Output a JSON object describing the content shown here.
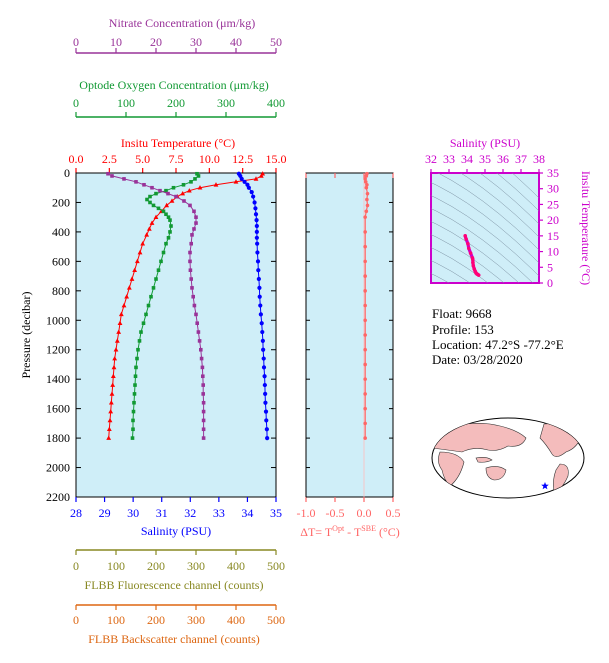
{
  "colors": {
    "panel_fill": "#cfeef8",
    "nitrate": "#993399",
    "oxygen": "#119933",
    "temperature": "#ff0000",
    "salinity": "#0000ff",
    "delta_t": "#ff6666",
    "ts_axis": "#cc00cc",
    "fluorescence": "#888822",
    "backscatter": "#dd6611",
    "map_land": "#f4bcbc",
    "map_ocean": "#ffffff",
    "float_marker": "#0000ff"
  },
  "info": {
    "float": "Float:  9668",
    "profile": "Profile:  153",
    "location": "Location:  47.2°S  -77.2°E",
    "date": "Date:  03/28/2020"
  },
  "chart_data": [
    {
      "type": "line",
      "title": "",
      "ylabel": "Pressure (decibar)",
      "ylim": [
        2200,
        0
      ],
      "y_ticks": [
        0,
        200,
        400,
        600,
        800,
        1000,
        1200,
        1400,
        1600,
        1800,
        2000,
        2200
      ],
      "axes": {
        "nitrate": {
          "label": "Nitrate Concentration (μm/kg)",
          "xlim": [
            0,
            50
          ],
          "ticks": [
            0,
            10,
            20,
            30,
            40,
            50
          ]
        },
        "oxygen": {
          "label": "Optode Oxygen Concentration (μm/kg)",
          "xlim": [
            0,
            400
          ],
          "ticks": [
            0,
            100,
            200,
            300,
            400
          ]
        },
        "temperature": {
          "label": "Insitu Temperature (°C)",
          "xlim": [
            0,
            15
          ],
          "ticks": [
            "0.0",
            "2.5",
            "5.0",
            "7.5",
            "10.0",
            "12.5",
            "15.0"
          ]
        },
        "salinity": {
          "label": "Salinity (PSU)",
          "xlim": [
            28,
            35
          ],
          "ticks": [
            28,
            29,
            30,
            31,
            32,
            33,
            34,
            35
          ]
        },
        "fluorescence": {
          "label": "FLBB Fluorescence channel (counts)",
          "xlim": [
            0,
            500
          ],
          "ticks": [
            0,
            100,
            200,
            300,
            400,
            500
          ]
        },
        "backscatter": {
          "label": "FLBB Backscatter channel (counts)",
          "xlim": [
            0,
            500
          ],
          "ticks": [
            0,
            100,
            200,
            300,
            400,
            500
          ]
        }
      },
      "series": [
        {
          "key": "temperature",
          "marker": "triangle",
          "points": [
            [
              14.0,
              5
            ],
            [
              13.9,
              20
            ],
            [
              13.5,
              40
            ],
            [
              12.0,
              60
            ],
            [
              10.5,
              80
            ],
            [
              9.3,
              100
            ],
            [
              8.5,
              120
            ],
            [
              8.0,
              140
            ],
            [
              7.6,
              160
            ],
            [
              7.2,
              190
            ],
            [
              6.8,
              220
            ],
            [
              6.4,
              260
            ],
            [
              6.0,
              300
            ],
            [
              5.7,
              340
            ],
            [
              5.5,
              380
            ],
            [
              5.3,
              420
            ],
            [
              5.0,
              480
            ],
            [
              4.8,
              540
            ],
            [
              4.6,
              600
            ],
            [
              4.4,
              660
            ],
            [
              4.2,
              720
            ],
            [
              4.0,
              780
            ],
            [
              3.8,
              840
            ],
            [
              3.6,
              900
            ],
            [
              3.4,
              960
            ],
            [
              3.3,
              1020
            ],
            [
              3.2,
              1080
            ],
            [
              3.1,
              1140
            ],
            [
              3.0,
              1200
            ],
            [
              2.9,
              1260
            ],
            [
              2.85,
              1320
            ],
            [
              2.8,
              1380
            ],
            [
              2.75,
              1440
            ],
            [
              2.7,
              1500
            ],
            [
              2.65,
              1560
            ],
            [
              2.6,
              1620
            ],
            [
              2.55,
              1680
            ],
            [
              2.5,
              1740
            ],
            [
              2.45,
              1800
            ]
          ]
        },
        {
          "key": "salinity",
          "marker": "circle",
          "points": [
            [
              33.7,
              5
            ],
            [
              33.75,
              20
            ],
            [
              33.8,
              40
            ],
            [
              33.9,
              60
            ],
            [
              34.0,
              80
            ],
            [
              34.05,
              100
            ],
            [
              34.15,
              130
            ],
            [
              34.2,
              160
            ],
            [
              34.25,
              200
            ],
            [
              34.28,
              240
            ],
            [
              34.3,
              280
            ],
            [
              34.32,
              320
            ],
            [
              34.33,
              360
            ],
            [
              34.33,
              400
            ],
            [
              34.33,
              440
            ],
            [
              34.34,
              480
            ],
            [
              34.35,
              540
            ],
            [
              34.37,
              600
            ],
            [
              34.38,
              660
            ],
            [
              34.4,
              720
            ],
            [
              34.42,
              780
            ],
            [
              34.43,
              840
            ],
            [
              34.45,
              900
            ],
            [
              34.47,
              960
            ],
            [
              34.5,
              1020
            ],
            [
              34.52,
              1080
            ],
            [
              34.54,
              1140
            ],
            [
              34.55,
              1200
            ],
            [
              34.57,
              1260
            ],
            [
              34.58,
              1320
            ],
            [
              34.6,
              1380
            ],
            [
              34.61,
              1440
            ],
            [
              34.62,
              1500
            ],
            [
              34.63,
              1560
            ],
            [
              34.65,
              1620
            ],
            [
              34.66,
              1680
            ],
            [
              34.68,
              1740
            ],
            [
              34.69,
              1800
            ]
          ]
        },
        {
          "key": "oxygen",
          "marker": "square",
          "points": [
            [
              242,
              5
            ],
            [
              245,
              20
            ],
            [
              238,
              40
            ],
            [
              230,
              60
            ],
            [
              215,
              80
            ],
            [
              195,
              100
            ],
            [
              180,
              120
            ],
            [
              160,
              140
            ],
            [
              148,
              160
            ],
            [
              142,
              180
            ],
            [
              148,
              200
            ],
            [
              155,
              220
            ],
            [
              165,
              240
            ],
            [
              175,
              260
            ],
            [
              180,
              280
            ],
            [
              185,
              300
            ],
            [
              188,
              320
            ],
            [
              190,
              360
            ],
            [
              188,
              400
            ],
            [
              185,
              440
            ],
            [
              180,
              480
            ],
            [
              175,
              540
            ],
            [
              170,
              600
            ],
            [
              165,
              660
            ],
            [
              160,
              720
            ],
            [
              155,
              780
            ],
            [
              150,
              840
            ],
            [
              145,
              900
            ],
            [
              140,
              960
            ],
            [
              135,
              1020
            ],
            [
              130,
              1080
            ],
            [
              127,
              1140
            ],
            [
              124,
              1200
            ],
            [
              122,
              1260
            ],
            [
              120,
              1320
            ],
            [
              119,
              1380
            ],
            [
              118,
              1440
            ],
            [
              117,
              1500
            ],
            [
              116,
              1560
            ],
            [
              115,
              1620
            ],
            [
              114,
              1680
            ],
            [
              114,
              1740
            ],
            [
              113,
              1800
            ]
          ]
        },
        {
          "key": "nitrate",
          "marker": "square",
          "points": [
            [
              8,
              5
            ],
            [
              9,
              20
            ],
            [
              12,
              40
            ],
            [
              15,
              60
            ],
            [
              17,
              80
            ],
            [
              19,
              100
            ],
            [
              21,
              120
            ],
            [
              23,
              140
            ],
            [
              25,
              160
            ],
            [
              27,
              190
            ],
            [
              28.5,
              220
            ],
            [
              29.5,
              260
            ],
            [
              30,
              300
            ],
            [
              30,
              340
            ],
            [
              29.5,
              380
            ],
            [
              29,
              420
            ],
            [
              28.8,
              480
            ],
            [
              28.5,
              540
            ],
            [
              28.5,
              600
            ],
            [
              28.6,
              660
            ],
            [
              28.8,
              720
            ],
            [
              29,
              780
            ],
            [
              29.3,
              840
            ],
            [
              29.6,
              900
            ],
            [
              30,
              960
            ],
            [
              30.3,
              1020
            ],
            [
              30.6,
              1080
            ],
            [
              30.9,
              1140
            ],
            [
              31.2,
              1200
            ],
            [
              31.4,
              1260
            ],
            [
              31.6,
              1320
            ],
            [
              31.7,
              1380
            ],
            [
              31.8,
              1440
            ],
            [
              31.8,
              1500
            ],
            [
              31.9,
              1560
            ],
            [
              31.9,
              1620
            ],
            [
              31.9,
              1680
            ],
            [
              31.9,
              1740
            ],
            [
              31.9,
              1800
            ]
          ]
        }
      ]
    },
    {
      "type": "line",
      "title": "",
      "xlabel": "ΔT= T",
      "xlabel_sup1": "Opt",
      "xlabel_mid": " - T",
      "xlabel_sup2": "SBE",
      "xlabel_end": " (°C)",
      "xlim": [
        -1.0,
        0.5
      ],
      "x_ticks": [
        "-1.0",
        "-0.5",
        "0.0",
        "0.5"
      ],
      "ylim": [
        2200,
        0
      ],
      "series": [
        {
          "key": "delta_t",
          "points": [
            [
              0.05,
              5
            ],
            [
              0.04,
              20
            ],
            [
              0.02,
              40
            ],
            [
              0.03,
              60
            ],
            [
              0.05,
              80
            ],
            [
              0.04,
              100
            ],
            [
              0.06,
              140
            ],
            [
              0.05,
              180
            ],
            [
              0.06,
              220
            ],
            [
              0.04,
              260
            ],
            [
              0.02,
              300
            ],
            [
              0.02,
              400
            ],
            [
              0.02,
              500
            ],
            [
              0.02,
              600
            ],
            [
              0.02,
              700
            ],
            [
              0.02,
              800
            ],
            [
              0.02,
              900
            ],
            [
              0.02,
              1000
            ],
            [
              0.02,
              1100
            ],
            [
              0.02,
              1200
            ],
            [
              0.02,
              1300
            ],
            [
              0.02,
              1400
            ],
            [
              0.02,
              1500
            ],
            [
              0.02,
              1600
            ],
            [
              0.02,
              1700
            ],
            [
              0.02,
              1800
            ]
          ]
        }
      ]
    },
    {
      "type": "line",
      "title": "",
      "xlabel": "Salinity (PSU)",
      "ylabel": "Insitu Temperature (°C)",
      "xlim": [
        32,
        38
      ],
      "ylim": [
        0,
        35
      ],
      "x_ticks": [
        32,
        33,
        34,
        35,
        36,
        37,
        38
      ],
      "y_ticks": [
        0,
        5,
        10,
        15,
        20,
        25,
        30,
        35
      ],
      "series": [
        {
          "key": "ts",
          "points": [
            [
              33.9,
              15
            ],
            [
              33.95,
              14
            ],
            [
              34.05,
              12.5
            ],
            [
              34.1,
              11
            ],
            [
              34.2,
              9.5
            ],
            [
              34.3,
              8
            ],
            [
              34.32,
              7.5
            ],
            [
              34.33,
              6.5
            ],
            [
              34.35,
              5.5
            ],
            [
              34.4,
              4.5
            ],
            [
              34.45,
              3.8
            ],
            [
              34.5,
              3.2
            ],
            [
              34.55,
              2.9
            ],
            [
              34.6,
              2.7
            ],
            [
              34.65,
              2.5
            ]
          ]
        }
      ]
    }
  ]
}
